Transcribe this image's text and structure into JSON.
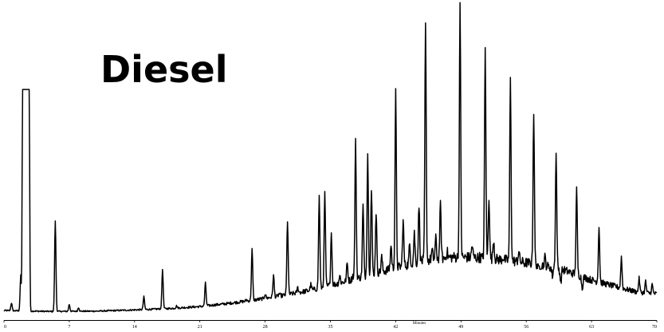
{
  "chart_data": {
    "type": "line",
    "title": "Diesel",
    "xlabel": "Minutes",
    "ylabel": "",
    "xlim": [
      0,
      70
    ],
    "ylim": [
      0,
      100
    ],
    "x_ticks": [
      "0",
      "7",
      "14",
      "21",
      "28",
      "35",
      "42",
      "49",
      "56",
      "63",
      "70"
    ],
    "grid": false,
    "line_color": "#000000",
    "baseline": [
      [
        0,
        0.5
      ],
      [
        5,
        0.2
      ],
      [
        10,
        0.3
      ],
      [
        15,
        0.8
      ],
      [
        18,
        1.2
      ],
      [
        21,
        1.8
      ],
      [
        24,
        2.8
      ],
      [
        27,
        4.0
      ],
      [
        30,
        5.5
      ],
      [
        33,
        7.2
      ],
      [
        36,
        9.5
      ],
      [
        39,
        12.0
      ],
      [
        42,
        14.5
      ],
      [
        45,
        16.8
      ],
      [
        48,
        18.0
      ],
      [
        51,
        17.8
      ],
      [
        54,
        17.0
      ],
      [
        57,
        15.8
      ],
      [
        60,
        13.8
      ],
      [
        63,
        10.5
      ],
      [
        66,
        8.0
      ],
      [
        68,
        6.5
      ],
      [
        70,
        6.0
      ]
    ],
    "peaks": [
      {
        "x": 0.8,
        "y": 3.0
      },
      {
        "x": 1.8,
        "y": 12.0
      },
      {
        "x": 5.5,
        "y": 30.0
      },
      {
        "x": 7.0,
        "y": 2.5
      },
      {
        "x": 8.0,
        "y": 1.5
      },
      {
        "x": 15.0,
        "y": 5.0
      },
      {
        "x": 17.0,
        "y": 14.0
      },
      {
        "x": 18.5,
        "y": 2.0
      },
      {
        "x": 21.6,
        "y": 9.5
      },
      {
        "x": 24.5,
        "y": 3.0
      },
      {
        "x": 26.0,
        "y": 4.0
      },
      {
        "x": 26.6,
        "y": 20.5
      },
      {
        "x": 28.0,
        "y": 6.0
      },
      {
        "x": 28.9,
        "y": 12.0
      },
      {
        "x": 29.5,
        "y": 6.0
      },
      {
        "x": 30.4,
        "y": 30.0
      },
      {
        "x": 31.5,
        "y": 8.0
      },
      {
        "x": 32.9,
        "y": 9.0
      },
      {
        "x": 33.8,
        "y": 38.0
      },
      {
        "x": 34.4,
        "y": 39.0
      },
      {
        "x": 35.1,
        "y": 26.0
      },
      {
        "x": 36.0,
        "y": 12.0
      },
      {
        "x": 36.8,
        "y": 16.0
      },
      {
        "x": 37.4,
        "y": 12.0
      },
      {
        "x": 37.7,
        "y": 56.0
      },
      {
        "x": 38.5,
        "y": 35.0
      },
      {
        "x": 39.0,
        "y": 52.0
      },
      {
        "x": 39.4,
        "y": 40.0
      },
      {
        "x": 39.9,
        "y": 33.0
      },
      {
        "x": 40.5,
        "y": 18.0
      },
      {
        "x": 41.5,
        "y": 22.0
      },
      {
        "x": 42.0,
        "y": 72.0
      },
      {
        "x": 42.8,
        "y": 30.0
      },
      {
        "x": 43.5,
        "y": 22.0
      },
      {
        "x": 44.0,
        "y": 26.0
      },
      {
        "x": 44.5,
        "y": 35.0
      },
      {
        "x": 45.2,
        "y": 94.0
      },
      {
        "x": 45.9,
        "y": 20.0
      },
      {
        "x": 46.3,
        "y": 24.0
      },
      {
        "x": 46.8,
        "y": 35.0
      },
      {
        "x": 47.5,
        "y": 20.0
      },
      {
        "x": 48.2,
        "y": 18.0
      },
      {
        "x": 48.9,
        "y": 100.0
      },
      {
        "x": 49.6,
        "y": 18.0
      },
      {
        "x": 50.2,
        "y": 22.0
      },
      {
        "x": 51.0,
        "y": 18.0
      },
      {
        "x": 51.6,
        "y": 86.0
      },
      {
        "x": 52.0,
        "y": 38.0
      },
      {
        "x": 52.5,
        "y": 24.0
      },
      {
        "x": 53.5,
        "y": 18.0
      },
      {
        "x": 54.3,
        "y": 76.0
      },
      {
        "x": 55.2,
        "y": 20.0
      },
      {
        "x": 55.8,
        "y": 16.0
      },
      {
        "x": 56.8,
        "y": 66.0
      },
      {
        "x": 57.3,
        "y": 14.0
      },
      {
        "x": 58.0,
        "y": 18.0
      },
      {
        "x": 58.8,
        "y": 12.0
      },
      {
        "x": 59.2,
        "y": 52.0
      },
      {
        "x": 59.7,
        "y": 10.0
      },
      {
        "x": 61.4,
        "y": 40.0
      },
      {
        "x": 62.0,
        "y": 8.0
      },
      {
        "x": 63.8,
        "y": 28.0
      },
      {
        "x": 66.2,
        "y": 18.0
      },
      {
        "x": 68.1,
        "y": 11.0
      },
      {
        "x": 68.8,
        "y": 10.0
      },
      {
        "x": 69.5,
        "y": 9.0
      }
    ],
    "solvent_peak": {
      "x_start": 2.0,
      "x_end": 2.7,
      "y": 73.0
    }
  }
}
